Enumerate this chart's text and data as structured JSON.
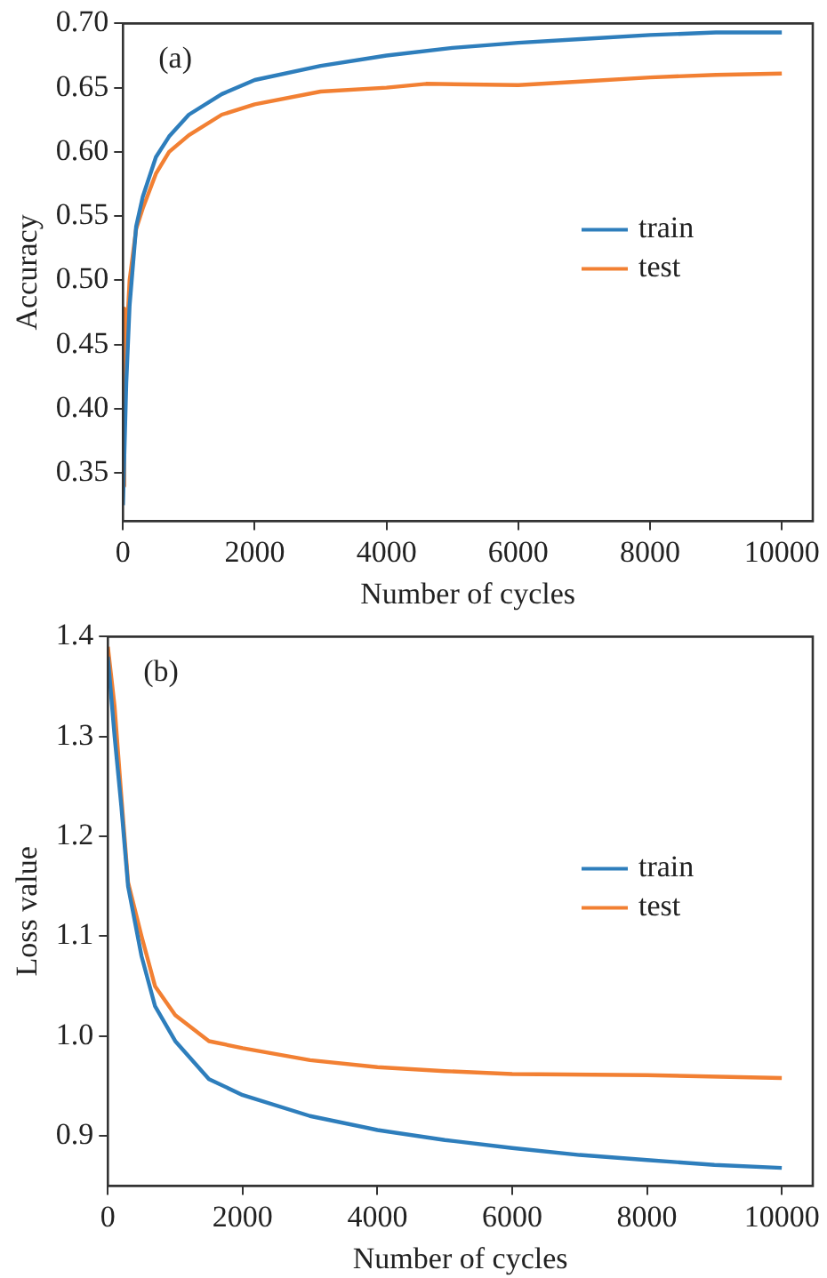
{
  "chart_data": [
    {
      "type": "line",
      "xlabel": "Number of cycles",
      "ylabel": "Accuracy",
      "annotations": [
        "(a)"
      ],
      "legend": "right",
      "grid": false,
      "marker": "none",
      "xlim": [
        0,
        10470
      ],
      "xticks": [
        0,
        2000,
        4000,
        6000,
        8000,
        10000
      ],
      "ylim": [
        0.3125,
        0.7
      ],
      "yticks": [
        {
          "value": 0.35,
          "label": "0.35"
        },
        {
          "value": 0.4,
          "label": "0.40"
        },
        {
          "value": 0.45,
          "label": "0.45"
        },
        {
          "value": 0.5,
          "label": "0.50"
        },
        {
          "value": 0.55,
          "label": "0.55"
        },
        {
          "value": 0.6,
          "label": "0.60"
        },
        {
          "value": 0.65,
          "label": "0.65"
        },
        {
          "value": 0.7,
          "label": "0.70"
        }
      ],
      "series": [
        {
          "name": "train",
          "color": "#2e7ebc",
          "x": [
            0,
            50,
            100,
            200,
            300,
            500,
            700,
            1000,
            1500,
            2000,
            3000,
            4000,
            5000,
            6000,
            7000,
            8000,
            9000,
            10000
          ],
          "values": [
            0.325,
            0.42,
            0.48,
            0.542,
            0.565,
            0.596,
            0.612,
            0.629,
            0.645,
            0.656,
            0.667,
            0.675,
            0.681,
            0.685,
            0.688,
            0.691,
            0.693,
            0.693
          ]
        },
        {
          "name": "test",
          "color": "#f28033",
          "x": [
            0,
            20,
            50,
            100,
            200,
            300,
            500,
            700,
            1000,
            1500,
            2000,
            3000,
            4000,
            4600,
            6000,
            7000,
            8000,
            9000,
            10000
          ],
          "values": [
            0.34,
            0.478,
            0.45,
            0.5,
            0.54,
            0.556,
            0.583,
            0.6,
            0.613,
            0.629,
            0.637,
            0.647,
            0.65,
            0.653,
            0.652,
            0.655,
            0.658,
            0.66,
            0.661
          ]
        }
      ]
    },
    {
      "type": "line",
      "xlabel": "Number of cycles",
      "ylabel": "Loss value",
      "annotations": [
        "(b)"
      ],
      "legend": "right",
      "grid": false,
      "marker": "none",
      "xlim": [
        0,
        10460
      ],
      "xticks": [
        0,
        2000,
        4000,
        6000,
        8000,
        10000
      ],
      "ylim": [
        0.85,
        1.4
      ],
      "yticks": [
        0.9,
        {
          "value": 1.0,
          "label": "1.0"
        },
        1.1,
        1.2,
        1.3,
        1.4
      ],
      "series": [
        {
          "name": "train",
          "color": "#2e7ebc",
          "x": [
            0,
            100,
            200,
            300,
            500,
            700,
            1000,
            1500,
            2000,
            3000,
            4000,
            5000,
            6000,
            7000,
            8000,
            9000,
            10000
          ],
          "values": [
            1.38,
            1.3,
            1.23,
            1.15,
            1.08,
            1.03,
            0.995,
            0.957,
            0.941,
            0.92,
            0.906,
            0.896,
            0.888,
            0.881,
            0.876,
            0.871,
            0.868
          ]
        },
        {
          "name": "test",
          "color": "#f28033",
          "x": [
            0,
            100,
            200,
            300,
            500,
            700,
            1000,
            1500,
            2000,
            3000,
            4000,
            5000,
            6000,
            8000,
            10000
          ],
          "values": [
            1.39,
            1.33,
            1.24,
            1.154,
            1.1,
            1.05,
            1.021,
            0.995,
            0.988,
            0.976,
            0.969,
            0.965,
            0.962,
            0.961,
            0.958
          ]
        }
      ]
    }
  ]
}
